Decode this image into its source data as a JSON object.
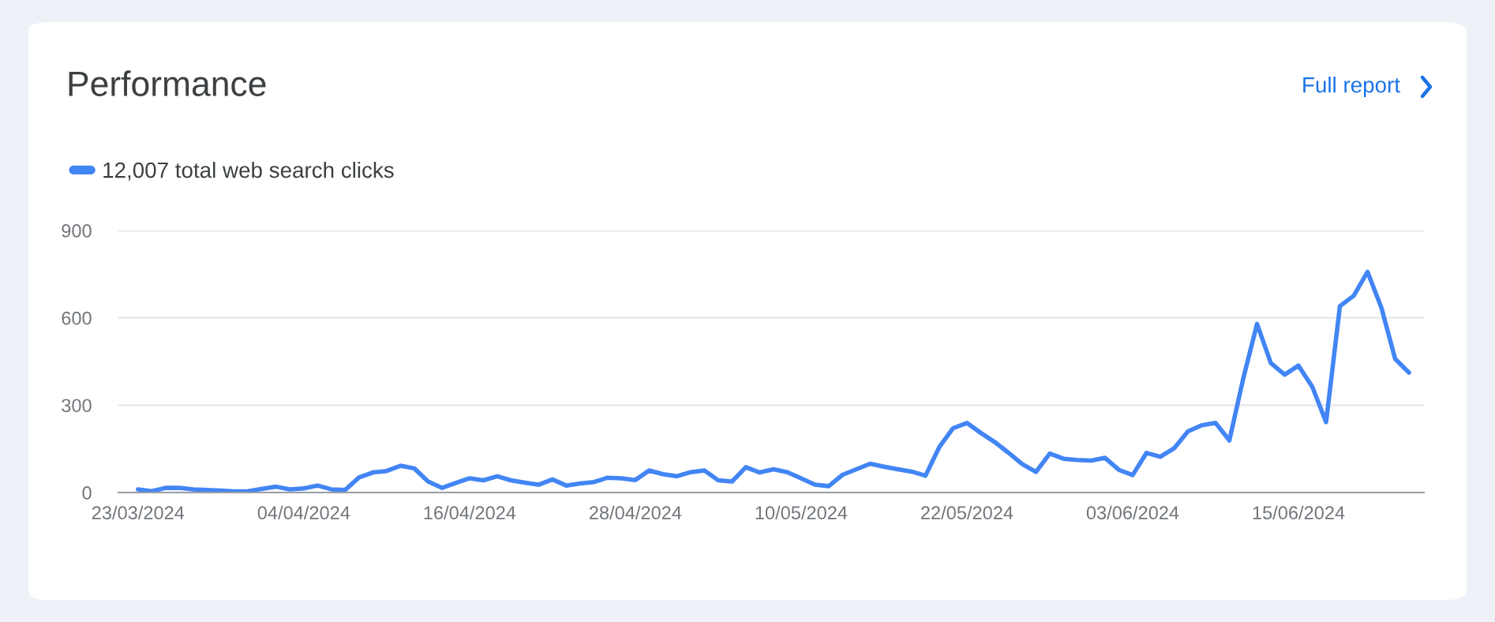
{
  "chart_data": {
    "type": "line",
    "title": "Performance",
    "annotations": [
      "Full report"
    ],
    "x": [
      "2024-03-23",
      "2024-03-24",
      "2024-03-25",
      "2024-03-26",
      "2024-03-27",
      "2024-03-28",
      "2024-03-29",
      "2024-03-30",
      "2024-03-31",
      "2024-04-01",
      "2024-04-02",
      "2024-04-03",
      "2024-04-04",
      "2024-04-05",
      "2024-04-06",
      "2024-04-07",
      "2024-04-08",
      "2024-04-09",
      "2024-04-10",
      "2024-04-11",
      "2024-04-12",
      "2024-04-13",
      "2024-04-14",
      "2024-04-15",
      "2024-04-16",
      "2024-04-17",
      "2024-04-18",
      "2024-04-19",
      "2024-04-20",
      "2024-04-21",
      "2024-04-22",
      "2024-04-23",
      "2024-04-24",
      "2024-04-25",
      "2024-04-26",
      "2024-04-27",
      "2024-04-28",
      "2024-04-29",
      "2024-04-30",
      "2024-05-01",
      "2024-05-02",
      "2024-05-03",
      "2024-05-04",
      "2024-05-05",
      "2024-05-06",
      "2024-05-07",
      "2024-05-08",
      "2024-05-09",
      "2024-05-10",
      "2024-05-11",
      "2024-05-12",
      "2024-05-13",
      "2024-05-14",
      "2024-05-15",
      "2024-05-16",
      "2024-05-17",
      "2024-05-18",
      "2024-05-19",
      "2024-05-20",
      "2024-05-21",
      "2024-05-22",
      "2024-05-23",
      "2024-05-24",
      "2024-05-25",
      "2024-05-26",
      "2024-05-27",
      "2024-05-28",
      "2024-05-29",
      "2024-05-30",
      "2024-05-31",
      "2024-06-01",
      "2024-06-02",
      "2024-06-03",
      "2024-06-04",
      "2024-06-05",
      "2024-06-06",
      "2024-06-07",
      "2024-06-08",
      "2024-06-09",
      "2024-06-10",
      "2024-06-11",
      "2024-06-12",
      "2024-06-13",
      "2024-06-14",
      "2024-06-15",
      "2024-06-16",
      "2024-06-17",
      "2024-06-18",
      "2024-06-19",
      "2024-06-20",
      "2024-06-21",
      "2024-06-22",
      "2024-06-23"
    ],
    "series": [
      {
        "name": "12,007 total web search clicks",
        "color": "#4285f4",
        "values": [
          11,
          5,
          16,
          16,
          11,
          9,
          7,
          4,
          5,
          13,
          20,
          11,
          14,
          24,
          11,
          9,
          52,
          69,
          74,
          92,
          83,
          38,
          16,
          33,
          49,
          42,
          56,
          42,
          34,
          27,
          45,
          24,
          31,
          36,
          51,
          49,
          43,
          76,
          63,
          56,
          70,
          76,
          42,
          38,
          87,
          69,
          80,
          70,
          49,
          27,
          22,
          61,
          80,
          99,
          89,
          80,
          72,
          58,
          156,
          221,
          239,
          205,
          174,
          137,
          98,
          71,
          134,
          116,
          112,
          110,
          119,
          78,
          60,
          136,
          123,
          152,
          210,
          231,
          239,
          179,
          391,
          579,
          445,
          405,
          436,
          363,
          242,
          640,
          676,
          758,
          635,
          459,
          412
        ]
      }
    ],
    "xlim": [
      "2024-03-21T14:00",
      "2024-06-24T02:00"
    ],
    "xticks": [
      {
        "value": "2024-03-23",
        "label": "23/03/2024"
      },
      {
        "value": "2024-04-04",
        "label": "04/04/2024"
      },
      {
        "value": "2024-04-16",
        "label": "16/04/2024"
      },
      {
        "value": "2024-04-28",
        "label": "28/04/2024"
      },
      {
        "value": "2024-05-10",
        "label": "10/05/2024"
      },
      {
        "value": "2024-05-22",
        "label": "22/05/2024"
      },
      {
        "value": "2024-06-03",
        "label": "03/06/2024"
      },
      {
        "value": "2024-06-15",
        "label": "15/06/2024"
      }
    ],
    "ylim": [
      0,
      900
    ],
    "yticks": [
      0,
      300,
      600,
      900
    ],
    "grid": "y",
    "legend": "top left",
    "marker": "none",
    "line_style": "solid"
  }
}
